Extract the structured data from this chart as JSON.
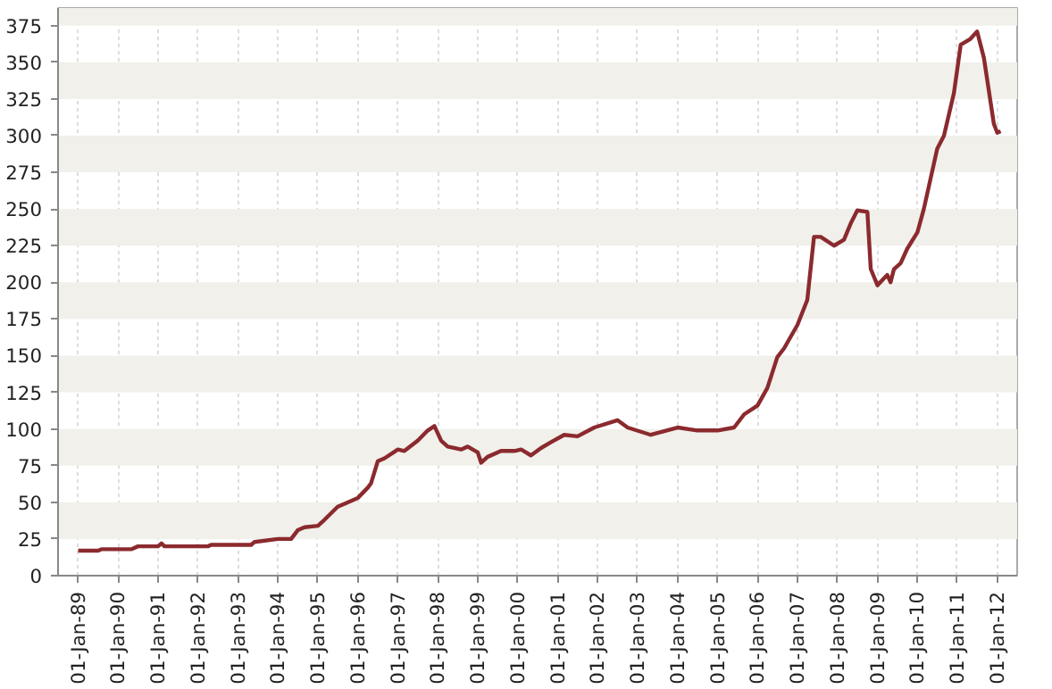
{
  "chart_data": {
    "type": "line",
    "x": [
      "1989-01",
      "1989-07",
      "1989-08",
      "1990-05",
      "1990-07",
      "1991-01",
      "1991-02",
      "1991-03",
      "1992-04",
      "1992-05",
      "1993-05",
      "1993-06",
      "1994-01",
      "1994-05",
      "1994-07",
      "1994-09",
      "1995-01",
      "1995-03",
      "1995-07",
      "1995-09",
      "1996-01",
      "1996-04",
      "1996-05",
      "1996-07",
      "1996-09",
      "1997-01",
      "1997-03",
      "1997-07",
      "1997-10",
      "1997-12",
      "1998-02",
      "1998-04",
      "1998-08",
      "1998-10",
      "1999-01",
      "1999-02",
      "1999-04",
      "1999-08",
      "1999-12",
      "2000-02",
      "2000-05",
      "2000-08",
      "2000-11",
      "2001-03",
      "2001-07",
      "2001-12",
      "2002-07",
      "2002-10",
      "2003-05",
      "2004-01",
      "2004-07",
      "2005-01",
      "2005-06",
      "2005-09",
      "2006-01",
      "2006-04",
      "2006-07",
      "2006-09",
      "2007-01",
      "2007-04",
      "2007-06",
      "2007-08",
      "2007-12",
      "2008-03",
      "2008-05",
      "2008-07",
      "2008-10",
      "2008-11",
      "2009-01",
      "2009-04",
      "2009-05",
      "2009-06",
      "2009-08",
      "2009-10",
      "2010-01",
      "2010-03",
      "2010-07",
      "2010-09",
      "2010-12",
      "2011-02",
      "2011-05",
      "2011-07",
      "2011-09",
      "2011-12",
      "2012-01",
      "2012-02"
    ],
    "series": [
      {
        "color": "#8b2a2e",
        "values": [
          17,
          17,
          18,
          18,
          20,
          20,
          22,
          20,
          20,
          21,
          21,
          23,
          25,
          25,
          31,
          33,
          34,
          38,
          47,
          49,
          53,
          60,
          63,
          78,
          80,
          86,
          85,
          92,
          99,
          102,
          92,
          88,
          86,
          88,
          84,
          77,
          81,
          85,
          85,
          86,
          82,
          87,
          91,
          96,
          95,
          101,
          106,
          101,
          96,
          101,
          99,
          99,
          101,
          110,
          116,
          128,
          149,
          155,
          171,
          188,
          231,
          231,
          225,
          229,
          240,
          249,
          248,
          209,
          198,
          205,
          200,
          209,
          213,
          223,
          234,
          250,
          291,
          300,
          329,
          362,
          366,
          371,
          353,
          308,
          302,
          303
        ]
      }
    ],
    "xlim": [
      "1988-07",
      "2012-07"
    ],
    "ylim": [
      0,
      387
    ],
    "xticks": [
      {
        "value": "1989-01",
        "label": "01-Jan-89"
      },
      {
        "value": "1990-01",
        "label": "01-Jan-90"
      },
      {
        "value": "1991-01",
        "label": "01-Jan-91"
      },
      {
        "value": "1992-01",
        "label": "01-Jan-92"
      },
      {
        "value": "1993-01",
        "label": "01-Jan-93"
      },
      {
        "value": "1994-01",
        "label": "01-Jan-94"
      },
      {
        "value": "1995-01",
        "label": "01-Jan-95"
      },
      {
        "value": "1996-01",
        "label": "01-Jan-96"
      },
      {
        "value": "1997-01",
        "label": "01-Jan-97"
      },
      {
        "value": "1998-01",
        "label": "01-Jan-98"
      },
      {
        "value": "1999-01",
        "label": "01-Jan-99"
      },
      {
        "value": "2000-01",
        "label": "01-Jan-00"
      },
      {
        "value": "2001-01",
        "label": "01-Jan-01"
      },
      {
        "value": "2002-01",
        "label": "01-Jan-02"
      },
      {
        "value": "2003-01",
        "label": "01-Jan-03"
      },
      {
        "value": "2004-01",
        "label": "01-Jan-04"
      },
      {
        "value": "2005-01",
        "label": "01-Jan-05"
      },
      {
        "value": "2006-01",
        "label": "01-Jan-06"
      },
      {
        "value": "2007-01",
        "label": "01-Jan-07"
      },
      {
        "value": "2008-01",
        "label": "01-Jan-08"
      },
      {
        "value": "2009-01",
        "label": "01-Jan-09"
      },
      {
        "value": "2010-01",
        "label": "01-Jan-10"
      },
      {
        "value": "2011-01",
        "label": "01-Jan-11"
      },
      {
        "value": "2012-01",
        "label": "01-Jan-12"
      }
    ],
    "yticks": [
      0,
      25,
      50,
      75,
      100,
      125,
      150,
      175,
      200,
      225,
      250,
      275,
      300,
      325,
      350,
      375
    ],
    "grid": true,
    "marker": "none",
    "line_style": "solid"
  }
}
